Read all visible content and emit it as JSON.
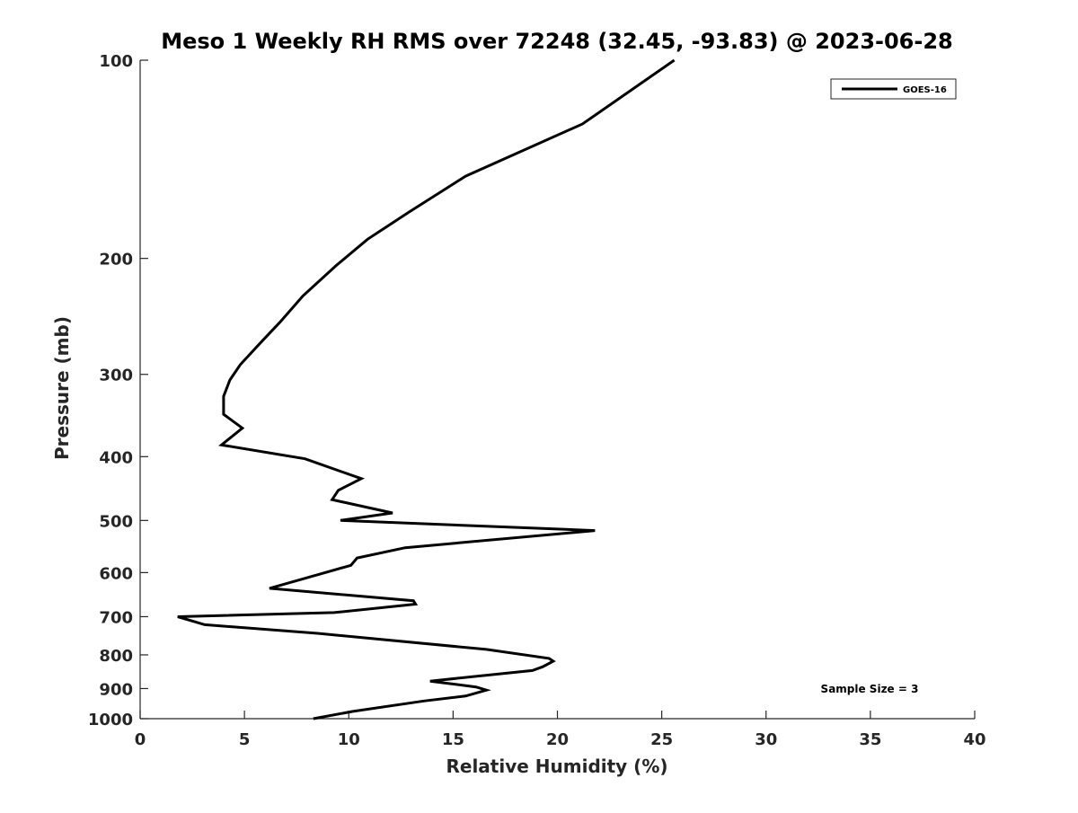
{
  "chart_data": {
    "type": "line",
    "title": "Meso 1 Weekly RH RMS over 72248 (32.45, -93.83) @ 2023-06-28",
    "xlabel": "Relative Humidity (%)",
    "ylabel": "Pressure (mb)",
    "xlim": [
      0,
      40
    ],
    "ylim": [
      1000,
      100
    ],
    "y_scale": "log",
    "y_inverted": true,
    "xticks": [
      0,
      5,
      10,
      15,
      20,
      25,
      30,
      35,
      40
    ],
    "yticks": [
      100,
      200,
      300,
      400,
      500,
      600,
      700,
      800,
      900,
      1000
    ],
    "grid": false,
    "legend_position": "top-right",
    "annotation": "Sample Size = 3",
    "series": [
      {
        "name": "GOES-16",
        "color": "#000000",
        "points": [
          [
            25.6,
            100
          ],
          [
            21.2,
            125
          ],
          [
            15.6,
            150
          ],
          [
            12.9,
            170
          ],
          [
            10.9,
            187
          ],
          [
            9.4,
            205
          ],
          [
            7.8,
            228
          ],
          [
            6.7,
            250
          ],
          [
            5.8,
            268
          ],
          [
            4.8,
            290
          ],
          [
            4.3,
            306
          ],
          [
            4.0,
            324
          ],
          [
            4.0,
            345
          ],
          [
            4.9,
            362
          ],
          [
            3.9,
            384
          ],
          [
            7.9,
            403
          ],
          [
            10.6,
            432
          ],
          [
            9.5,
            450
          ],
          [
            9.2,
            465
          ],
          [
            12.1,
            487
          ],
          [
            9.6,
            500
          ],
          [
            21.8,
            518
          ],
          [
            12.7,
            550
          ],
          [
            10.4,
            570
          ],
          [
            10.1,
            585
          ],
          [
            6.2,
            634
          ],
          [
            13.1,
            662
          ],
          [
            13.2,
            670
          ],
          [
            9.3,
            690
          ],
          [
            1.8,
            700
          ],
          [
            3.1,
            720
          ],
          [
            8.5,
            742
          ],
          [
            16.6,
            785
          ],
          [
            19.6,
            810
          ],
          [
            19.8,
            818
          ],
          [
            19.3,
            834
          ],
          [
            18.8,
            845
          ],
          [
            13.9,
            877
          ],
          [
            16.1,
            895
          ],
          [
            16.6,
            905
          ],
          [
            15.6,
            924
          ],
          [
            13.6,
            940
          ],
          [
            10.2,
            975
          ],
          [
            8.3,
            1000
          ]
        ]
      }
    ]
  }
}
